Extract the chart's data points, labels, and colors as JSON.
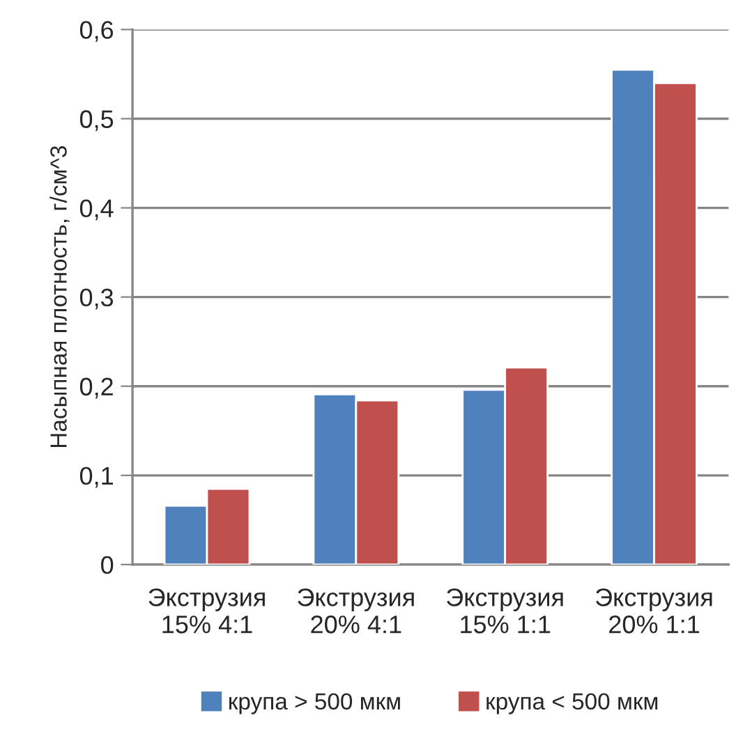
{
  "chart_data": {
    "type": "bar",
    "ylabel": "Насыпная плотность, г/см^3",
    "categories": [
      "Экструзия 15% 4:1",
      "Экструзия 20% 4:1",
      "Экструзия 15% 1:1",
      "Экструзия 20% 1:1"
    ],
    "series": [
      {
        "name": "крупа > 500 мкм",
        "color": "#4f81bd",
        "values": [
          0.066,
          0.191,
          0.196,
          0.555
        ]
      },
      {
        "name": "крупа < 500 мкм",
        "color": "#c0504d",
        "values": [
          0.085,
          0.184,
          0.221,
          0.54
        ]
      }
    ],
    "ylim": [
      0,
      0.6
    ],
    "yticks": [
      {
        "value": 0,
        "label": "0"
      },
      {
        "value": 0.1,
        "label": "0,1"
      },
      {
        "value": 0.2,
        "label": "0,2"
      },
      {
        "value": 0.3,
        "label": "0,3"
      },
      {
        "value": 0.4,
        "label": "0,4"
      },
      {
        "value": 0.5,
        "label": "0,5"
      },
      {
        "value": 0.6,
        "label": "0,6"
      }
    ],
    "grid": "y",
    "legend": "bottom"
  }
}
